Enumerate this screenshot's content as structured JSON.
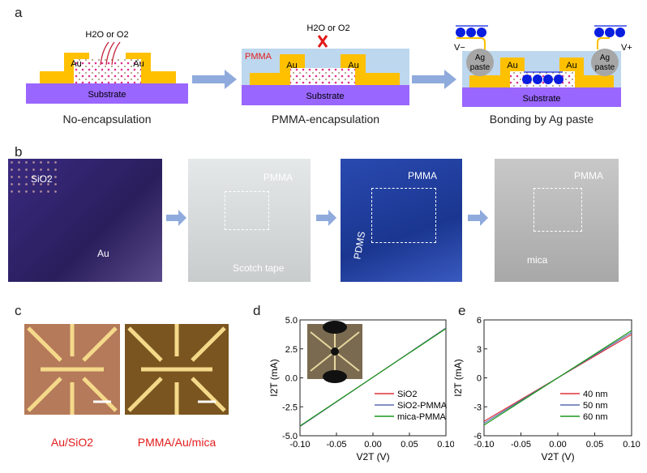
{
  "panel_a": {
    "label": "a",
    "gas": "H2O or O2",
    "au": "Au",
    "substrate": "Substrate",
    "pmma": "PMMA",
    "ag_paste": [
      "Ag",
      "paste"
    ],
    "electron": "e",
    "v_minus": "V−",
    "v_plus": "V+",
    "captions": [
      "No-encapsulation",
      "PMMA-encapsulation",
      "Bonding by Ag paste"
    ],
    "colors": {
      "au": "#ffc000",
      "substrate": "#9966ff",
      "pmma": "#bdd7ee",
      "electron": "#0a1ee0",
      "arrow": "#8faadc"
    }
  },
  "panel_b": {
    "label": "b",
    "photos": [
      {
        "labels": [
          "SiO2",
          "Au"
        ]
      },
      {
        "labels": [
          "PMMA",
          "Scotch tape"
        ]
      },
      {
        "labels": [
          "PMMA",
          "PDMS"
        ]
      },
      {
        "labels": [
          "PMMA",
          "mica"
        ]
      }
    ]
  },
  "panel_c": {
    "label": "c",
    "captions": [
      "Au/SiO2",
      "PMMA/Au/mica"
    ]
  },
  "chart_data": [
    {
      "panel": "d",
      "type": "line",
      "xlabel": "V2T (V)",
      "ylabel": "I2T (mA)",
      "xlim": [
        -0.1,
        0.1
      ],
      "ylim": [
        -5.0,
        5.0
      ],
      "xticks": [
        "-0.10",
        "-0.05",
        "0.00",
        "0.05",
        "0.10"
      ],
      "yticks": [
        "-5.0",
        "-2.5",
        "0.0",
        "2.5",
        "5.0"
      ],
      "legend_position": "bottom-right",
      "inset": "optical image of device",
      "series": [
        {
          "name": "SiO2",
          "color": "#e0303a",
          "x": [
            -0.1,
            0.1
          ],
          "y": [
            -4.2,
            4.3
          ]
        },
        {
          "name": "SiO2-PMMA",
          "color": "#5a6fb0",
          "x": [
            -0.1,
            0.1
          ],
          "y": [
            -4.2,
            4.3
          ]
        },
        {
          "name": "mica-PMMA",
          "color": "#1a9a1a",
          "x": [
            -0.1,
            0.1
          ],
          "y": [
            -4.15,
            4.25
          ]
        }
      ]
    },
    {
      "panel": "e",
      "type": "line",
      "xlabel": "V2T (V)",
      "ylabel": "I2T (mA)",
      "xlim": [
        -0.1,
        0.1
      ],
      "ylim": [
        -6,
        6
      ],
      "xticks": [
        "-0.10",
        "-0.05",
        "0.00",
        "0.05",
        "0.10"
      ],
      "yticks": [
        "-6",
        "-3",
        "0",
        "3",
        "6"
      ],
      "legend_position": "bottom-right",
      "series": [
        {
          "name": "40 nm",
          "color": "#e0303a",
          "x": [
            -0.1,
            0.1
          ],
          "y": [
            -4.5,
            4.5
          ]
        },
        {
          "name": "50 nm",
          "color": "#5a6fb0",
          "x": [
            -0.1,
            0.1
          ],
          "y": [
            -4.7,
            4.7
          ]
        },
        {
          "name": "60 nm",
          "color": "#1a9a1a",
          "x": [
            -0.1,
            0.1
          ],
          "y": [
            -4.9,
            4.9
          ]
        }
      ]
    }
  ]
}
